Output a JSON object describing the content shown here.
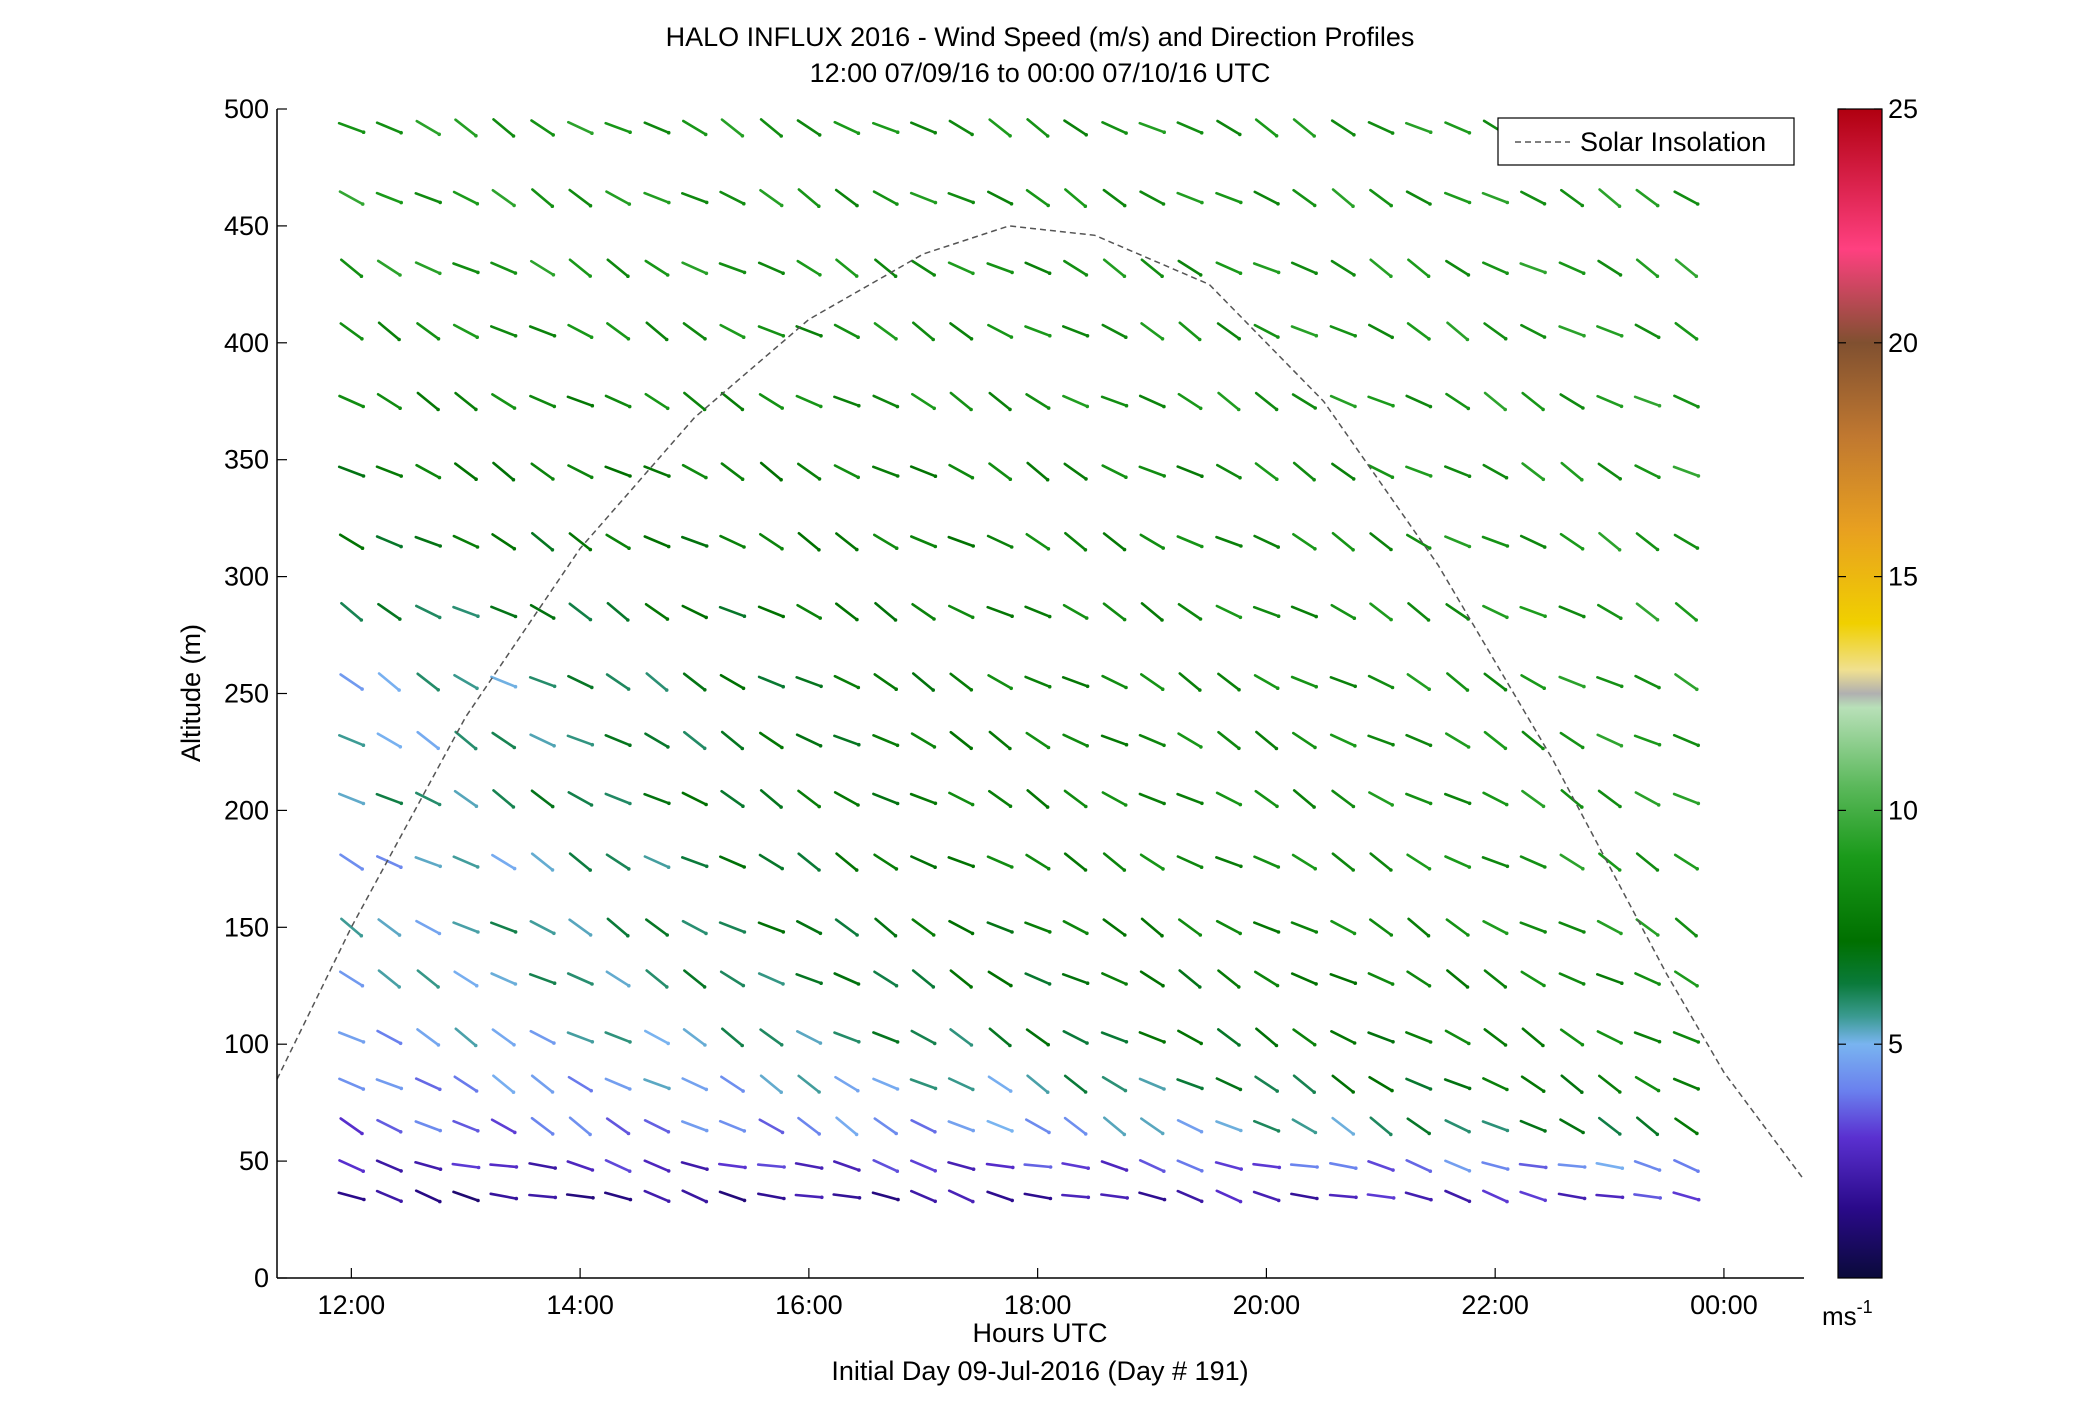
{
  "chart_data": {
    "type": "quiver",
    "title": "HALO INFLUX 2016 - Wind Speed (m/s) and Direction Profiles",
    "subtitle": "12:00 07/09/16 to 00:00 07/10/16  UTC",
    "xlabel": "Hours UTC",
    "xlabel2": "Initial Day 09-Jul-2016 (Day # 191)",
    "ylabel": "Altitude (m)",
    "xlim_hours": [
      11.35,
      24.7
    ],
    "ylim": [
      0,
      500
    ],
    "x_ticks": [
      {
        "value": 12,
        "label": "12:00"
      },
      {
        "value": 14,
        "label": "14:00"
      },
      {
        "value": 16,
        "label": "16:00"
      },
      {
        "value": 18,
        "label": "18:00"
      },
      {
        "value": 20,
        "label": "20:00"
      },
      {
        "value": 22,
        "label": "22:00"
      },
      {
        "value": 24,
        "label": "00:00"
      }
    ],
    "y_ticks": [
      0,
      50,
      100,
      150,
      200,
      250,
      300,
      350,
      400,
      450,
      500
    ],
    "legend": {
      "label": "Solar Insolation",
      "position": "top-right",
      "style": "dashed",
      "color": "#555555"
    },
    "solar_insolation_curve": {
      "points": [
        [
          11.35,
          85
        ],
        [
          12.0,
          150
        ],
        [
          13.0,
          240
        ],
        [
          14.0,
          312
        ],
        [
          15.0,
          368
        ],
        [
          16.0,
          410
        ],
        [
          17.0,
          438
        ],
        [
          17.75,
          450
        ],
        [
          18.5,
          446
        ],
        [
          19.5,
          425
        ],
        [
          20.5,
          375
        ],
        [
          21.5,
          305
        ],
        [
          22.5,
          222
        ],
        [
          23.5,
          130
        ],
        [
          24.0,
          88
        ],
        [
          24.7,
          42
        ]
      ]
    },
    "wind_vectors": {
      "description_units": "speed in m/s, direction in degrees meteorological (wind from)",
      "times": [
        12.0,
        12.33,
        12.67,
        13.0,
        13.33,
        13.67,
        14.0,
        14.33,
        14.67,
        15.0,
        15.33,
        15.67,
        16.0,
        16.33,
        16.67,
        17.0,
        17.33,
        17.67,
        18.0,
        18.33,
        18.67,
        19.0,
        19.33,
        19.67,
        20.0,
        20.33,
        20.67,
        21.0,
        21.33,
        21.67,
        22.0,
        22.33,
        22.67,
        23.0,
        23.33,
        23.67
      ],
      "altitudes": [
        35,
        48,
        65,
        83,
        103,
        128,
        150,
        178,
        205,
        230,
        255,
        285,
        315,
        345,
        375,
        405,
        432,
        462,
        492
      ],
      "speed_profile_early": [
        1.5,
        2.5,
        3.5,
        4.0,
        4.5,
        5.0,
        5.0,
        4.5,
        5.5,
        5.0,
        5.0,
        6.0,
        7.0,
        7.5,
        8.0,
        8.5,
        9.0,
        9.0,
        9.0
      ],
      "speed_profile_midday": [
        2.0,
        3.0,
        4.5,
        5.5,
        6.5,
        7.0,
        7.5,
        8.0,
        8.0,
        8.0,
        8.0,
        8.0,
        8.0,
        8.0,
        8.5,
        8.5,
        8.5,
        8.5,
        8.5
      ],
      "speed_profile_late": [
        3.0,
        4.5,
        7.0,
        8.0,
        8.5,
        8.5,
        9.0,
        9.0,
        9.0,
        9.0,
        9.0,
        9.0,
        9.0,
        9.0,
        9.0,
        9.0,
        9.0,
        9.0,
        9.0
      ],
      "direction_from_deg": 300
    },
    "colorbar": {
      "min": 0,
      "max": 25,
      "unit": "ms",
      "unit_exponent": "-1",
      "ticks": [
        5,
        10,
        15,
        20,
        25
      ],
      "stops": [
        {
          "v": 0,
          "c": "#0a0a3a"
        },
        {
          "v": 1.5,
          "c": "#2a0a8a"
        },
        {
          "v": 3,
          "c": "#5a30d0"
        },
        {
          "v": 4,
          "c": "#6a80ee"
        },
        {
          "v": 5,
          "c": "#79b4f0"
        },
        {
          "v": 5.6,
          "c": "#3a9a90"
        },
        {
          "v": 6.3,
          "c": "#0a7a3a"
        },
        {
          "v": 7.2,
          "c": "#007000"
        },
        {
          "v": 9,
          "c": "#1a9a1a"
        },
        {
          "v": 10.5,
          "c": "#5ab85a"
        },
        {
          "v": 12.2,
          "c": "#b8e0b8"
        },
        {
          "v": 12.5,
          "c": "#b0b0b0"
        },
        {
          "v": 13,
          "c": "#f0e090"
        },
        {
          "v": 14,
          "c": "#f0d000"
        },
        {
          "v": 16,
          "c": "#e8a020"
        },
        {
          "v": 18,
          "c": "#c07830"
        },
        {
          "v": 20,
          "c": "#805030"
        },
        {
          "v": 22,
          "c": "#ff4080"
        },
        {
          "v": 25,
          "c": "#b00010"
        }
      ]
    }
  }
}
